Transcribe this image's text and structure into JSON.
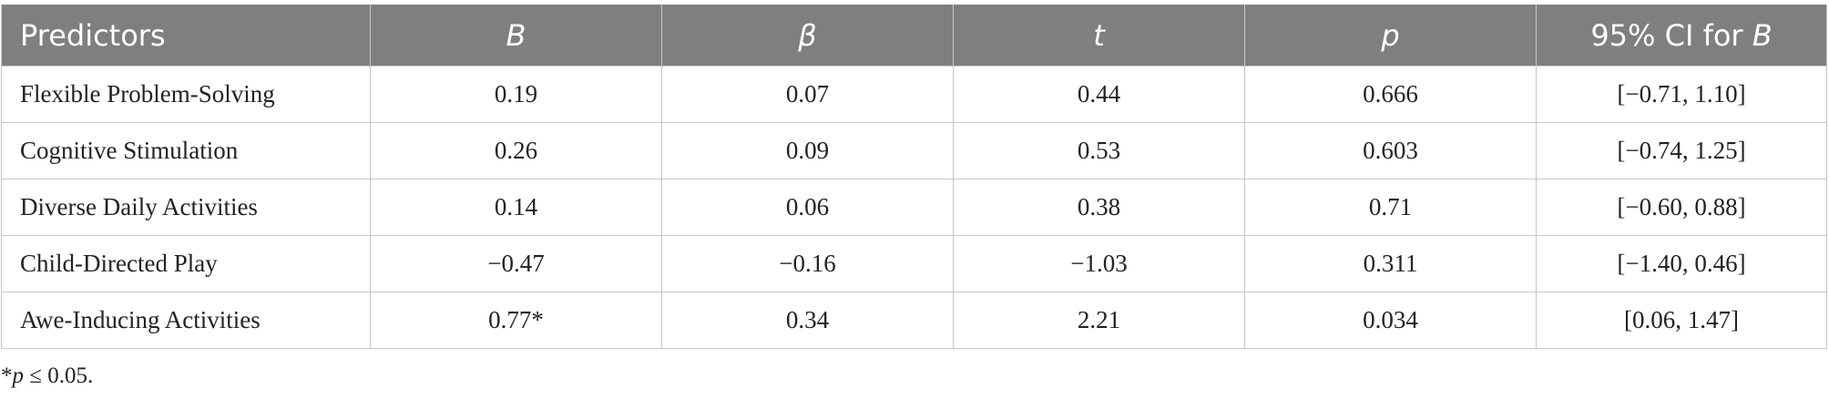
{
  "table": {
    "headers": [
      {
        "text": "Predictors",
        "italic": false
      },
      {
        "text": "B",
        "italic": true
      },
      {
        "text": "β",
        "italic": true
      },
      {
        "text": "t",
        "italic": true
      },
      {
        "text": "p",
        "italic": true
      },
      {
        "text_prefix": "95% CI for ",
        "text_italic": "B"
      }
    ],
    "rows": [
      {
        "predictor": "Flexible Problem-Solving",
        "B": "0.19",
        "beta": "0.07",
        "t": "0.44",
        "p": "0.666",
        "ci": "[−0.71, 1.10]"
      },
      {
        "predictor": "Cognitive Stimulation",
        "B": "0.26",
        "beta": "0.09",
        "t": "0.53",
        "p": "0.603",
        "ci": "[−0.74, 1.25]"
      },
      {
        "predictor": "Diverse Daily Activities",
        "B": "0.14",
        "beta": "0.06",
        "t": "0.38",
        "p": "0.71",
        "ci": "[−0.60, 0.88]"
      },
      {
        "predictor": "Child-Directed Play",
        "B": "−0.47",
        "beta": "−0.16",
        "t": "−1.03",
        "p": "0.311",
        "ci": "[−1.40, 0.46]"
      },
      {
        "predictor": "Awe-Inducing Activities",
        "B": "0.77*",
        "beta": "0.34",
        "t": "2.21",
        "p": "0.034",
        "ci": "[0.06, 1.47]"
      }
    ]
  },
  "footnote": {
    "star": "*",
    "p_symbol": "p",
    "rest": " ≤ 0.05."
  },
  "colors": {
    "header_bg": "#7f807e",
    "header_text": "#ffffff",
    "grid": "#c7c7c7",
    "body_text": "#222222"
  }
}
